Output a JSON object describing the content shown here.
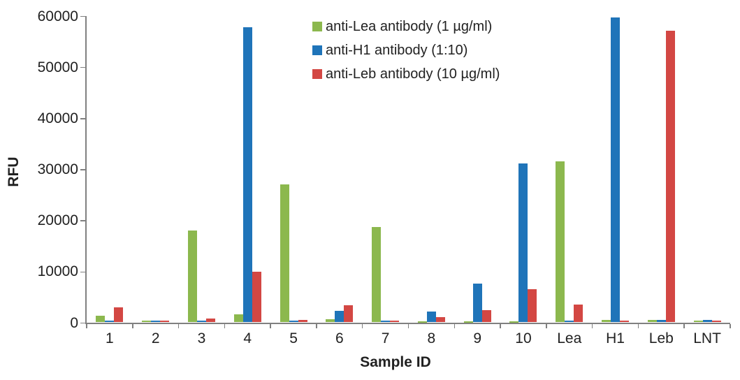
{
  "chart_data": {
    "type": "bar",
    "title": "",
    "xlabel": "Sample ID",
    "ylabel": "RFU",
    "ylim": [
      0,
      60000
    ],
    "y_tick_step": 10000,
    "y_ticks": [
      "0",
      "10000",
      "20000",
      "30000",
      "40000",
      "50000",
      "60000"
    ],
    "categories": [
      "1",
      "2",
      "3",
      "4",
      "5",
      "6",
      "7",
      "8",
      "9",
      "10",
      "Lea",
      "H1",
      "Leb",
      "LNT"
    ],
    "series": [
      {
        "name": "anti-Lea antibody (1 µg/ml)",
        "color": "#8CB84E",
        "values": [
          1300,
          300,
          18000,
          1600,
          27000,
          600,
          18600,
          200,
          200,
          200,
          31500,
          500,
          500,
          400
        ]
      },
      {
        "name": "anti-H1 antibody (1:10)",
        "color": "#1F74B9",
        "values": [
          300,
          400,
          300,
          57800,
          300,
          2200,
          300,
          2100,
          7600,
          31100,
          300,
          59700,
          500,
          500
        ]
      },
      {
        "name": "anti-Leb antibody (10 µg/ml)",
        "color": "#D34743",
        "values": [
          2900,
          400,
          800,
          9900,
          500,
          3300,
          300,
          1000,
          2400,
          6500,
          3500,
          400,
          57000,
          400
        ]
      }
    ],
    "legend_position": "top-center",
    "grid": false,
    "axis_color": "#808080",
    "text_color": "#212121",
    "background_color": "#FFFFFF"
  }
}
